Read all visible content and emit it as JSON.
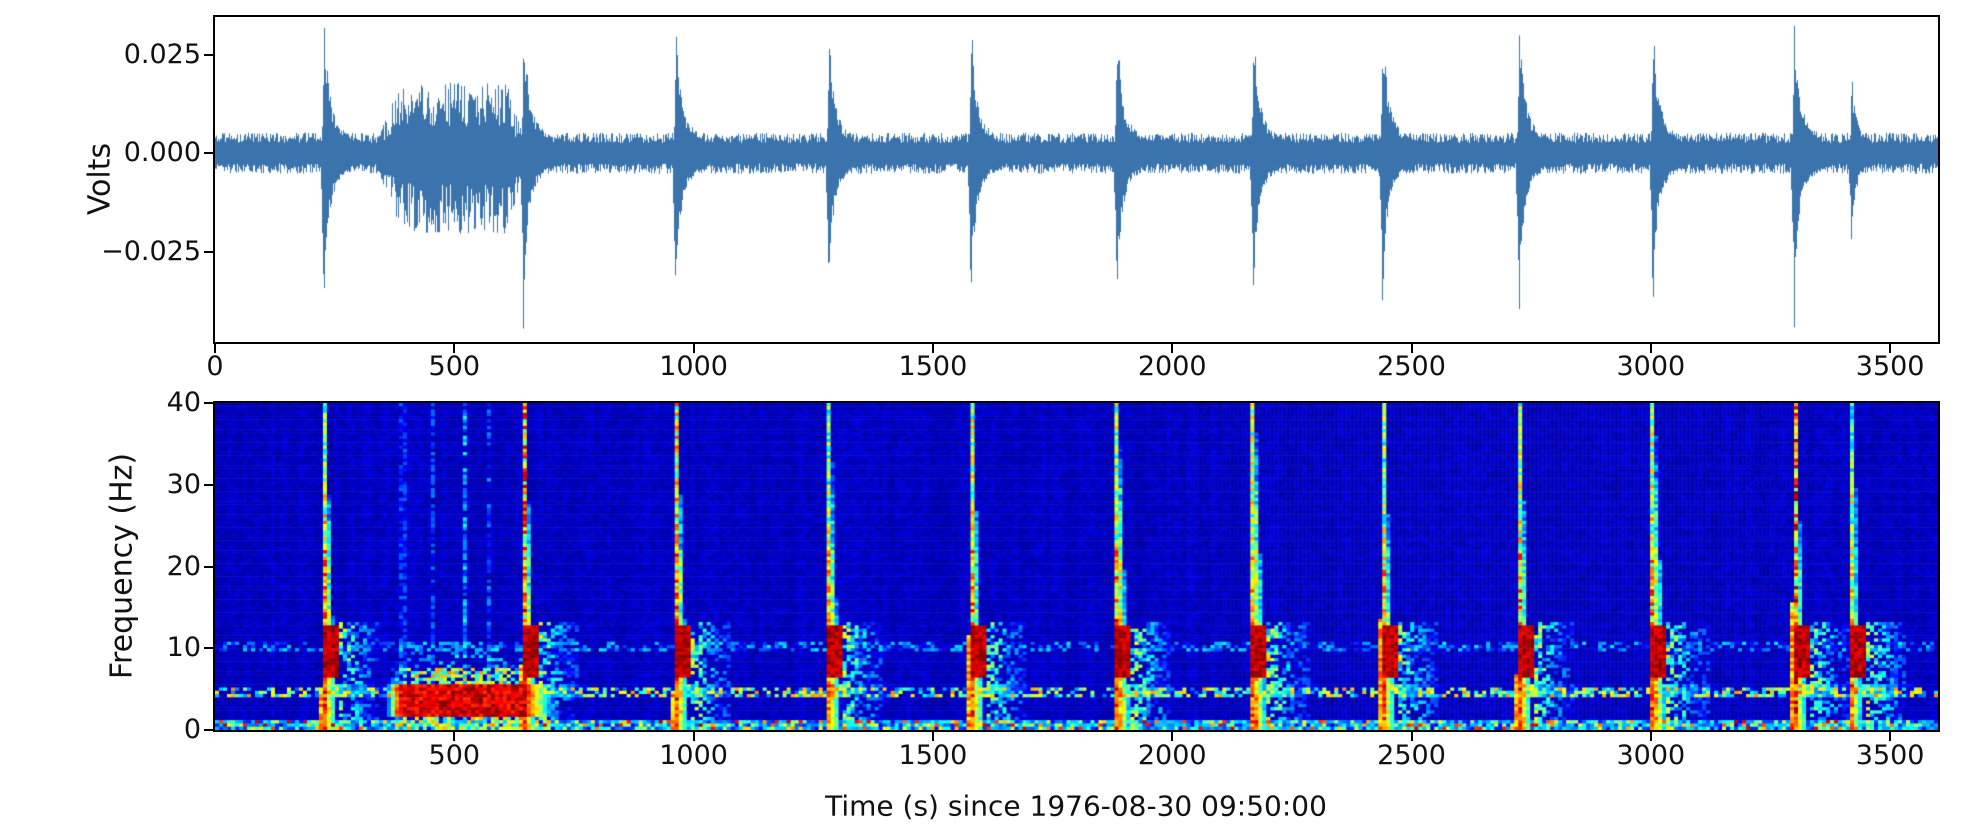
{
  "figure": {
    "background": "#ffffff",
    "axis_color": "#000000",
    "text_color": "#111111",
    "waveform_color": "#3b74ad",
    "colormap": "jet",
    "colormap_low": "#00009b",
    "colormap_high": "#800000"
  },
  "waveform_plot": {
    "ylabel": "Volts",
    "ytick_labels": [
      "0.025",
      "0.000",
      "−0.025"
    ],
    "ytick_values": [
      0.025,
      0.0,
      -0.025
    ],
    "xtick_labels": [
      "0",
      "500",
      "1000",
      "1500",
      "2000",
      "2500",
      "3000",
      "3500"
    ],
    "xtick_values": [
      0,
      500,
      1000,
      1500,
      2000,
      2500,
      3000,
      3500
    ]
  },
  "spectrogram_plot": {
    "ylabel": "Frequency (Hz)",
    "xlabel": "Time (s) since 1976-08-30 09:50:00",
    "ytick_labels": [
      "40",
      "30",
      "20",
      "10",
      "0"
    ],
    "ytick_values": [
      40,
      30,
      20,
      10,
      0
    ],
    "xtick_labels": [
      "500",
      "1000",
      "1500",
      "2000",
      "2500",
      "3000",
      "3500"
    ],
    "xtick_values": [
      500,
      1000,
      1500,
      2000,
      2500,
      3000,
      3500
    ]
  },
  "chart_data": [
    {
      "type": "line",
      "title": "",
      "ylabel": "Volts",
      "xlabel": "",
      "xlim": [
        0,
        3600
      ],
      "ylim": [
        -0.0478,
        0.0345
      ],
      "xticks": [
        0,
        500,
        1000,
        1500,
        2000,
        2500,
        3000,
        3500
      ],
      "yticks": [
        -0.025,
        0.0,
        0.025
      ],
      "grid": false,
      "color": "#3b74ad",
      "noise_floor": 0.004,
      "noise_burst": {
        "start": 360,
        "end": 630,
        "amp": 0.017
      },
      "neg_spike_factor": 1.45,
      "events": [
        {
          "t": 228,
          "amp": 0.0315
        },
        {
          "t": 645,
          "amp": 0.031
        },
        {
          "t": 963,
          "amp": 0.03
        },
        {
          "t": 1283,
          "amp": 0.028
        },
        {
          "t": 1580,
          "amp": 0.03
        },
        {
          "t": 1885,
          "amp": 0.03
        },
        {
          "t": 2170,
          "amp": 0.029
        },
        {
          "t": 2440,
          "amp": 0.029
        },
        {
          "t": 2725,
          "amp": 0.03
        },
        {
          "t": 3005,
          "amp": 0.0295
        },
        {
          "t": 3300,
          "amp": 0.031
        },
        {
          "t": 3420,
          "amp": 0.017
        }
      ]
    },
    {
      "type": "heatmap",
      "title": "",
      "ylabel": "Frequency (Hz)",
      "xlabel": "Time (s) since 1976-08-30 09:50:00",
      "xlim": [
        0,
        3600
      ],
      "flim": [
        0,
        40
      ],
      "xticks": [
        500,
        1000,
        1500,
        2000,
        2500,
        3000,
        3500
      ],
      "yticks": [
        0,
        10,
        20,
        30,
        40
      ],
      "colormap": "jet",
      "background_level": 0.05,
      "bottom_band": {
        "f_max": 1.4
      },
      "bands": [
        {
          "f": 4.7,
          "halfwidth": 0.6,
          "density": 0.55,
          "strength": 0.62
        },
        {
          "f": 10.2,
          "halfwidth": 0.8,
          "density": 0.45,
          "strength": 0.3
        }
      ],
      "noise_burst": {
        "start": 355,
        "end": 720,
        "f_max": 7.5
      },
      "streaks": [
        {
          "t": 392,
          "v": 0.16
        },
        {
          "t": 455,
          "v": 0.18
        },
        {
          "t": 520,
          "v": 0.28
        },
        {
          "t": 575,
          "v": 0.2
        }
      ],
      "events": [
        {
          "t": 228,
          "scale": 1.0,
          "col": 0.65
        },
        {
          "t": 645,
          "scale": 1.0,
          "col": 0.95
        },
        {
          "t": 963,
          "scale": 1.0,
          "col": 0.85
        },
        {
          "t": 1283,
          "scale": 0.9,
          "col": 0.7
        },
        {
          "t": 1580,
          "scale": 1.0,
          "col": 0.75
        },
        {
          "t": 1885,
          "scale": 1.0,
          "col": 0.7
        },
        {
          "t": 2170,
          "scale": 1.0,
          "col": 0.7
        },
        {
          "t": 2440,
          "scale": 1.0,
          "col": 0.65
        },
        {
          "t": 2725,
          "scale": 1.0,
          "col": 0.7
        },
        {
          "t": 3005,
          "scale": 1.0,
          "col": 0.75
        },
        {
          "t": 3300,
          "scale": 1.0,
          "col": 1.0
        },
        {
          "t": 3420,
          "scale": 0.85,
          "col": 0.7
        }
      ]
    }
  ]
}
